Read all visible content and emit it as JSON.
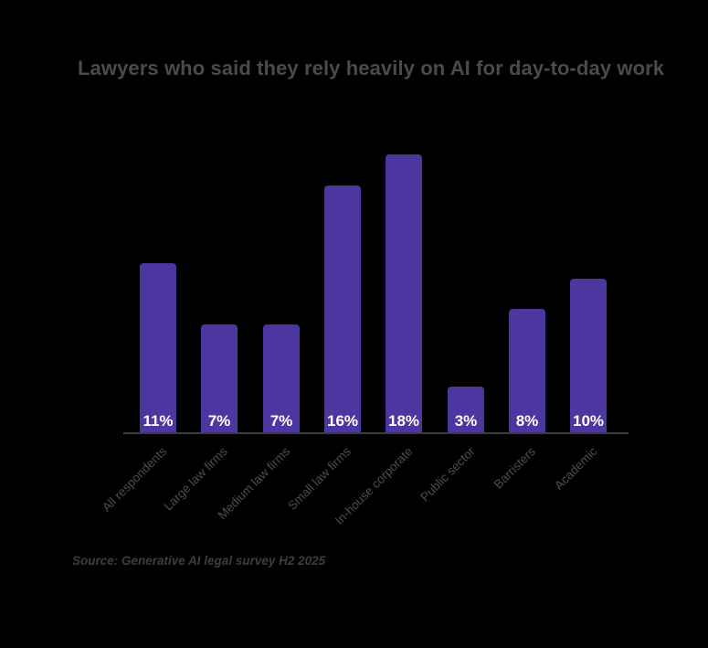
{
  "page": {
    "background_color": "#000000"
  },
  "chart": {
    "title": "Lawyers who said they rely heavily on AI for day-to-day work",
    "source": "Source: Generative AI legal survey H2 2025",
    "title_color": "#4a4a4a",
    "source_color": "#3e3e3e",
    "axis_line_color": "#3c3c3c",
    "bar_color": "#4d36a0",
    "value_label_color": "#ffffff",
    "category_label_color": "#4d4d4d"
  },
  "chart_data": {
    "type": "bar",
    "title": "Lawyers who said they rely heavily on AI for day-to-day work",
    "categories": [
      "All respondents",
      "Large law firms",
      "Medium law firms",
      "Small law firms",
      "In-house corporate",
      "Public sector",
      "Barristers",
      "Academic"
    ],
    "values": [
      11,
      7,
      7,
      16,
      18,
      3,
      8,
      10
    ],
    "value_labels": [
      "11%",
      "7%",
      "7%",
      "16%",
      "18%",
      "3%",
      "8%",
      "10%"
    ],
    "xlabel": "",
    "ylabel": "",
    "ylim": [
      0,
      18
    ],
    "unit": "%",
    "grid": false,
    "legend": false,
    "value_label_position": "inside-bottom",
    "category_label_rotation_deg": -45,
    "source": "Source: Generative AI legal survey H2 2025"
  }
}
